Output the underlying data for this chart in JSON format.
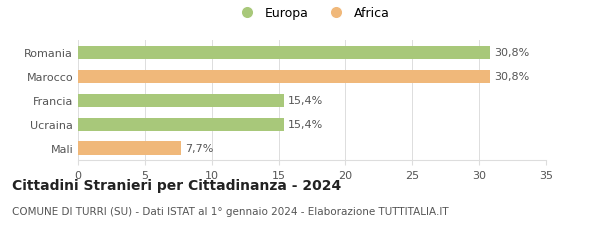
{
  "categories": [
    "Romania",
    "Marocco",
    "Francia",
    "Ucraina",
    "Mali"
  ],
  "values": [
    30.8,
    30.8,
    15.4,
    15.4,
    7.7
  ],
  "labels": [
    "30,8%",
    "30,8%",
    "15,4%",
    "15,4%",
    "7,7%"
  ],
  "colors": [
    "#a8c87a",
    "#f0b87a",
    "#a8c87a",
    "#a8c87a",
    "#f0b87a"
  ],
  "legend_labels": [
    "Europa",
    "Africa"
  ],
  "legend_colors": [
    "#a8c87a",
    "#f0b87a"
  ],
  "xlim": [
    0,
    35
  ],
  "xticks": [
    0,
    5,
    10,
    15,
    20,
    25,
    30,
    35
  ],
  "title": "Cittadini Stranieri per Cittadinanza - 2024",
  "subtitle": "COMUNE DI TURRI (SU) - Dati ISTAT al 1° gennaio 2024 - Elaborazione TUTTITALIA.IT",
  "background_color": "#ffffff",
  "bar_height": 0.55,
  "title_fontsize": 10,
  "subtitle_fontsize": 7.5,
  "tick_fontsize": 8,
  "label_fontsize": 8,
  "ytick_fontsize": 8,
  "legend_fontsize": 9
}
